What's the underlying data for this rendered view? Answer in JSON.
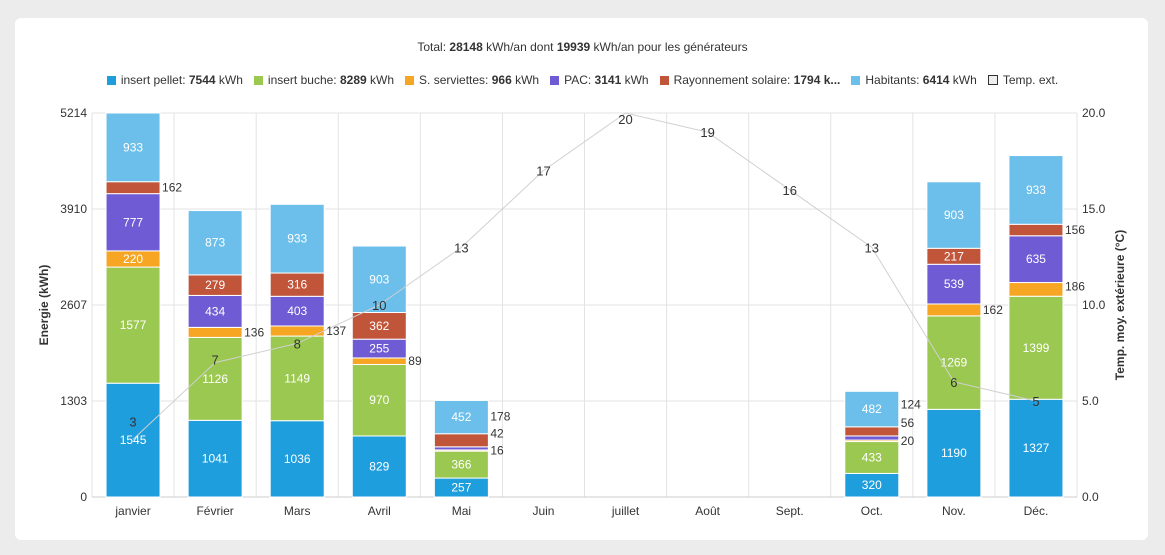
{
  "header": {
    "prefix": "Total: ",
    "total": "28148",
    "mid": " kWh/an dont ",
    "gen": "19939",
    "suffix": " kWh/an pour les générateurs"
  },
  "chart_data": {
    "type": "bar",
    "stacked": true,
    "categories": [
      "janvier",
      "Février",
      "Mars",
      "Avril",
      "Mai",
      "Juin",
      "juillet",
      "Août",
      "Sept.",
      "Oct.",
      "Nov.",
      "Déc."
    ],
    "series": [
      {
        "name": "insert pellet",
        "total": "7544",
        "color": "#1f9ede",
        "values": [
          1545,
          1041,
          1036,
          829,
          257,
          0,
          0,
          0,
          0,
          320,
          1190,
          1327
        ]
      },
      {
        "name": "insert buche",
        "total": "8289",
        "color": "#9bc850",
        "values": [
          1577,
          1126,
          1149,
          970,
          366,
          0,
          0,
          0,
          0,
          433,
          1269,
          1399
        ]
      },
      {
        "name": "S. serviettes",
        "total": "966",
        "color": "#f6a623",
        "values": [
          220,
          136,
          137,
          89,
          16,
          0,
          0,
          0,
          0,
          20,
          162,
          186
        ]
      },
      {
        "name": "PAC",
        "total": "3141",
        "color": "#6f5bd3",
        "values": [
          777,
          434,
          403,
          255,
          42,
          0,
          0,
          0,
          0,
          56,
          539,
          635
        ]
      },
      {
        "name": "Rayonnement solaire",
        "total": "1794",
        "color": "#c0553a",
        "values": [
          162,
          279,
          316,
          362,
          178,
          0,
          0,
          0,
          0,
          124,
          217,
          156
        ]
      },
      {
        "name": "Habitants",
        "total": "6414",
        "color": "#6bbfea",
        "values": [
          933,
          873,
          933,
          903,
          452,
          0,
          0,
          0,
          0,
          482,
          903,
          933
        ]
      }
    ],
    "line": {
      "name": "Temp. ext.",
      "values": [
        3,
        7,
        8,
        10,
        13,
        17,
        20,
        19,
        16,
        13,
        6,
        5
      ]
    },
    "legend_truncated_label": "Rayonnement solaire: ",
    "legend_truncated_value": "1794 k...",
    "unit": " kWh",
    "ylabel": "Energie (kWh)",
    "ylim": [
      0,
      5214
    ],
    "yticks": [
      "0",
      "1303",
      "2607",
      "3910",
      "5214"
    ],
    "y2label": "Temp. moy. extérieure (°C)",
    "y2lim": [
      0,
      20
    ],
    "y2ticks": [
      "0.0",
      "5.0",
      "10.0",
      "15.0",
      "20.0"
    ],
    "legend_placement": "top"
  }
}
